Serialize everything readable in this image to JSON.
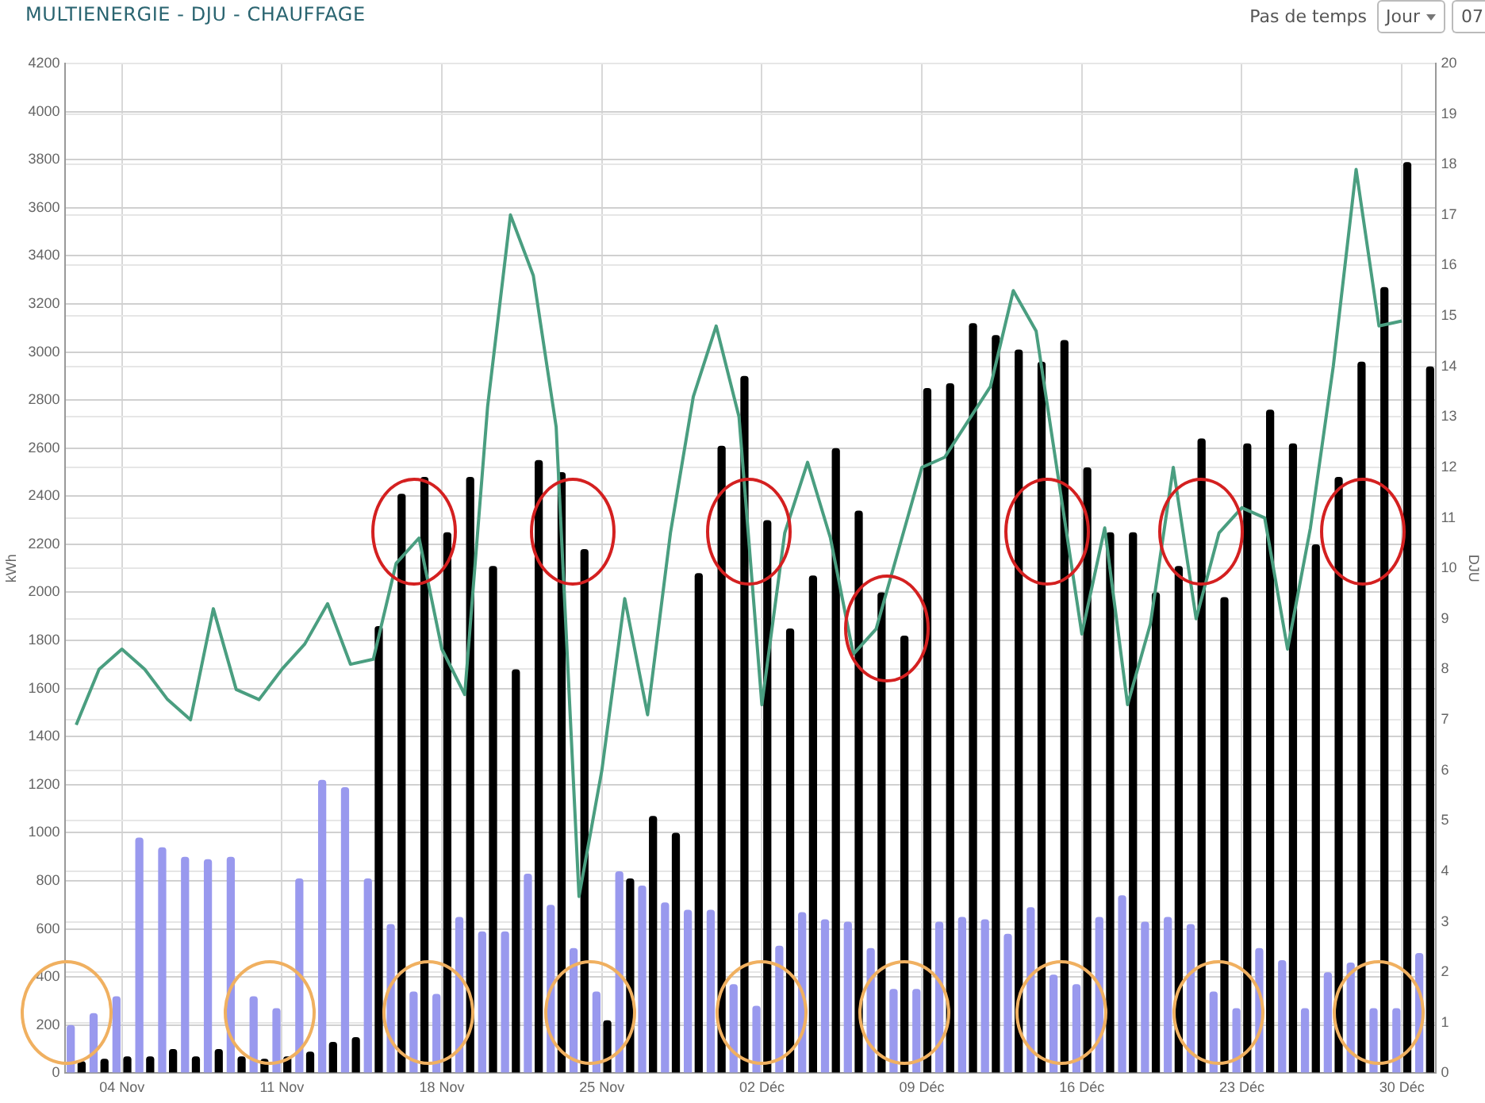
{
  "chart_data": {
    "type": "bar",
    "title": "MULTIENERGIE - DJU - CHAUFFAGE",
    "ylabel": "kWh",
    "y2label": "DJU",
    "annotations": [
      "Pas de temps",
      "Jour",
      "07"
    ],
    "categories": [
      null,
      null,
      "04 Nov",
      null,
      null,
      null,
      null,
      null,
      null,
      "11 Nov",
      null,
      null,
      null,
      null,
      null,
      null,
      "18 Nov",
      null,
      null,
      null,
      null,
      null,
      null,
      "25 Nov",
      null,
      null,
      null,
      null,
      null,
      null,
      "02 Déc",
      null,
      null,
      null,
      null,
      null,
      null,
      "09 Déc",
      null,
      null,
      null,
      null,
      null,
      null,
      "16 Déc",
      null,
      null,
      null,
      null,
      null,
      null,
      "23 Déc",
      null,
      null,
      null,
      null,
      null,
      null,
      "30 Déc",
      null
    ],
    "series": [
      {
        "color": "#9999ee",
        "values": [
          200,
          250,
          320,
          980,
          940,
          900,
          890,
          900,
          320,
          270,
          810,
          1220,
          1190,
          810,
          620,
          340,
          330,
          650,
          590,
          590,
          830,
          700,
          520,
          340,
          840,
          780,
          710,
          680,
          680,
          370,
          280,
          530,
          670,
          640,
          630,
          520,
          350,
          350,
          630,
          650,
          640,
          580,
          690,
          410,
          370,
          650,
          740,
          630,
          650,
          620,
          340,
          270,
          520,
          470,
          270,
          420,
          460,
          270,
          270,
          500
        ]
      },
      {
        "color": "#000000",
        "values": [
          50,
          60,
          70,
          70,
          100,
          70,
          100,
          70,
          60,
          70,
          90,
          130,
          150,
          1860,
          2410,
          2480,
          2250,
          2480,
          2110,
          1680,
          2550,
          2500,
          2180,
          220,
          810,
          1070,
          1000,
          2080,
          2610,
          2900,
          2300,
          1850,
          2070,
          2600,
          2340,
          2000,
          1820,
          2850,
          2870,
          3120,
          3070,
          3010,
          2960,
          3050,
          2520,
          2250,
          2250,
          2000,
          2110,
          2640,
          1980,
          2620,
          2760,
          2620,
          2200,
          2480,
          2960,
          3270,
          3790,
          2940
        ]
      },
      {
        "type": "line",
        "axis": "y2",
        "color": "#4a9e80",
        "values": [
          6.9,
          8.0,
          8.4,
          8.0,
          7.4,
          7.0,
          9.2,
          7.6,
          7.4,
          8.0,
          8.5,
          9.3,
          8.1,
          8.2,
          10.1,
          10.6,
          8.4,
          7.5,
          13.2,
          17.0,
          15.8,
          12.8,
          3.5,
          6.0,
          9.4,
          7.1,
          10.7,
          13.4,
          14.8,
          13.0,
          7.3,
          10.7,
          12.1,
          10.6,
          8.3,
          8.8,
          10.4,
          12.0,
          12.2,
          12.9,
          13.6,
          15.5,
          14.7,
          11.7,
          8.7,
          10.8,
          7.3,
          8.9,
          12.0,
          9.0,
          10.7,
          11.2,
          11.0,
          8.4,
          10.8,
          14.0,
          17.9,
          14.8,
          14.9,
          null
        ]
      }
    ],
    "ylim": [
      0,
      4200
    ],
    "yticks": [
      0,
      200,
      400,
      600,
      800,
      1000,
      1200,
      1400,
      1600,
      1800,
      2000,
      2200,
      2400,
      2600,
      2800,
      3000,
      3200,
      3400,
      3600,
      3800,
      4000,
      4200
    ],
    "y2lim": [
      0,
      20
    ],
    "y2ticks": [
      0,
      1,
      2,
      3,
      4,
      5,
      6,
      7,
      8,
      9,
      10,
      11,
      12,
      13,
      14,
      15,
      16,
      17,
      18,
      19,
      20
    ],
    "grid": true,
    "legend": false,
    "marker": "none",
    "line_style": "solid"
  }
}
